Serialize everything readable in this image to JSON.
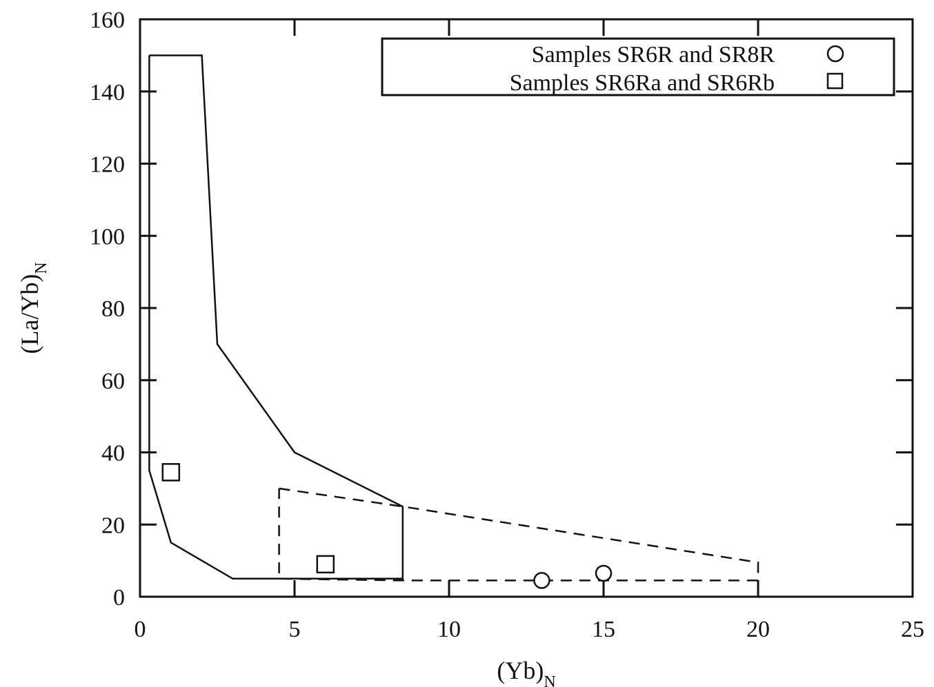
{
  "chart_data": {
    "type": "scatter",
    "title": "",
    "xlabel": {
      "main": "(Yb)",
      "sub": "N"
    },
    "ylabel": {
      "main": "(La/Yb)",
      "sub": "N"
    },
    "xlim": [
      0,
      25
    ],
    "ylim": [
      0,
      160
    ],
    "x_ticks": [
      0,
      5,
      10,
      15,
      20,
      25
    ],
    "y_ticks": [
      0,
      20,
      40,
      60,
      80,
      100,
      120,
      140,
      160
    ],
    "x_tick_labels": [
      "0",
      "5",
      "10",
      "15",
      "20",
      "25"
    ],
    "y_tick_labels": [
      "0",
      "20",
      "40",
      "60",
      "80",
      "100",
      "120",
      "140",
      "160"
    ],
    "grid": false,
    "legend_position": "top-right",
    "series": [
      {
        "name": "Samples SR6R and SR8R",
        "marker": "circle",
        "points": [
          [
            13,
            4.5
          ],
          [
            15,
            6.5
          ]
        ]
      },
      {
        "name": "Samples SR6Ra and SR6Rb",
        "marker": "square",
        "points": [
          [
            1,
            34.5
          ],
          [
            6,
            9
          ]
        ]
      }
    ],
    "regions": [
      {
        "style": "solid",
        "points": [
          [
            0.3,
            150
          ],
          [
            2,
            150
          ],
          [
            2.5,
            70
          ],
          [
            5,
            40
          ],
          [
            8.5,
            25
          ],
          [
            8.5,
            5
          ],
          [
            3,
            5
          ],
          [
            1,
            15
          ],
          [
            0.3,
            35
          ],
          [
            0.3,
            150
          ]
        ]
      },
      {
        "style": "dashed",
        "points": [
          [
            4.5,
            30
          ],
          [
            8.5,
            25
          ],
          [
            20,
            9.5
          ],
          [
            20,
            4.5
          ],
          [
            8.5,
            4.5
          ],
          [
            4.5,
            5
          ],
          [
            4.5,
            30
          ]
        ]
      }
    ]
  }
}
